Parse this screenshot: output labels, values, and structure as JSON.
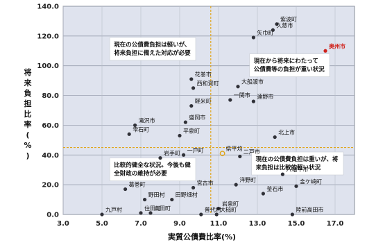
{
  "chart_data": {
    "type": "scatter",
    "xlabel": "実質公債費比率(%)",
    "ylabel": "将来負担比率(%)",
    "xlim": [
      3.0,
      18.0
    ],
    "ylim": [
      0.0,
      140.0
    ],
    "x_ticks": [
      3.0,
      5.0,
      7.0,
      9.0,
      11.0,
      13.0,
      15.0,
      17.0
    ],
    "y_ticks": [
      0.0,
      20.0,
      40.0,
      60.0,
      80.0,
      100.0,
      120.0,
      140.0
    ],
    "x_tick_labels": [
      "3.0",
      "5.0",
      "7.0",
      "9.0",
      "11.0",
      "13.0",
      "15.0",
      "17.0"
    ],
    "y_tick_labels": [
      "0.0",
      "20.0",
      "40.0",
      "60.0",
      "80.0",
      "100.0",
      "120.0",
      "140.0"
    ],
    "grid": true,
    "ref_x": 10.6,
    "ref_y": 45.0,
    "colors": {
      "plot_bg": "#dfe3ee",
      "point": "#303138",
      "highlight": "#d0231c",
      "ref_line": "#e0a61c"
    },
    "points": [
      {
        "label": "紫波町",
        "x": 14.0,
        "y": 128
      },
      {
        "label": "矢巾町",
        "x": 12.8,
        "y": 119
      },
      {
        "label": "久慈市",
        "x": 13.8,
        "y": 124
      },
      {
        "label": "奥州市",
        "x": 16.5,
        "y": 110,
        "highlight": true
      },
      {
        "label": "花巻市",
        "x": 9.6,
        "y": 91
      },
      {
        "label": "大船渡市",
        "x": 12.0,
        "y": 86
      },
      {
        "label": "西和賀町",
        "x": 9.7,
        "y": 85
      },
      {
        "label": "一関市",
        "x": 11.6,
        "y": 77
      },
      {
        "label": "遠野市",
        "x": 12.8,
        "y": 76
      },
      {
        "label": "軽米町",
        "x": 9.6,
        "y": 73
      },
      {
        "label": "盛岡市",
        "x": 9.3,
        "y": 62
      },
      {
        "label": "滝沢市",
        "x": 6.7,
        "y": 60
      },
      {
        "label": "雫石町",
        "x": 6.4,
        "y": 54
      },
      {
        "label": "平泉町",
        "x": 9.0,
        "y": 53
      },
      {
        "label": "北上市",
        "x": 13.9,
        "y": 52
      },
      {
        "label": "県平均",
        "x": 11.2,
        "y": 41
      },
      {
        "label": "二戸市",
        "x": 12.1,
        "y": 39
      },
      {
        "label": "岩手町",
        "x": 8.0,
        "y": 38
      },
      {
        "label": "一戸町",
        "x": 9.2,
        "y": 40
      },
      {
        "label": "八幡平市",
        "x": 14.3,
        "y": 27
      },
      {
        "label": "宮古市",
        "x": 9.7,
        "y": 18
      },
      {
        "label": "洋野町",
        "x": 11.9,
        "y": 20
      },
      {
        "label": "葛巻町",
        "x": 6.2,
        "y": 17
      },
      {
        "label": "金ケ崎町",
        "x": 15.0,
        "y": 19
      },
      {
        "label": "釜石市",
        "x": 13.3,
        "y": 14
      },
      {
        "label": "野田村",
        "x": 7.2,
        "y": 10
      },
      {
        "label": "田野畑村",
        "x": 8.6,
        "y": 10
      },
      {
        "label": "岩泉町",
        "x": 11.0,
        "y": 4
      },
      {
        "label": "住田町",
        "x": 7.0,
        "y": 1
      },
      {
        "label": "山田町",
        "x": 7.5,
        "y": 1
      },
      {
        "label": "九戸村",
        "x": 5.0,
        "y": 0
      },
      {
        "label": "普代村",
        "x": 10.1,
        "y": 0
      },
      {
        "label": "大槌町",
        "x": 10.9,
        "y": 0
      },
      {
        "label": "陸前高田市",
        "x": 14.8,
        "y": 0
      }
    ],
    "annotations": [
      {
        "lines": [
          "現在の公債費負担は軽いが、",
          "将来負担に備えた対応が必要"
        ],
        "x": 5.4,
        "y": 119
      },
      {
        "lines": [
          "現在から将来にわたって",
          "公債費等の負担が重い状況"
        ],
        "x": 12.6,
        "y": 108
      },
      {
        "lines": [
          "比較的健全な状況。今後も健",
          "全財政の維持が必要"
        ],
        "x": 5.4,
        "y": 38
      },
      {
        "lines": [
          "現在の公債費負担は重いが、将",
          "来負担は比較的軽い状況"
        ],
        "x": 12.7,
        "y": 42
      }
    ]
  }
}
